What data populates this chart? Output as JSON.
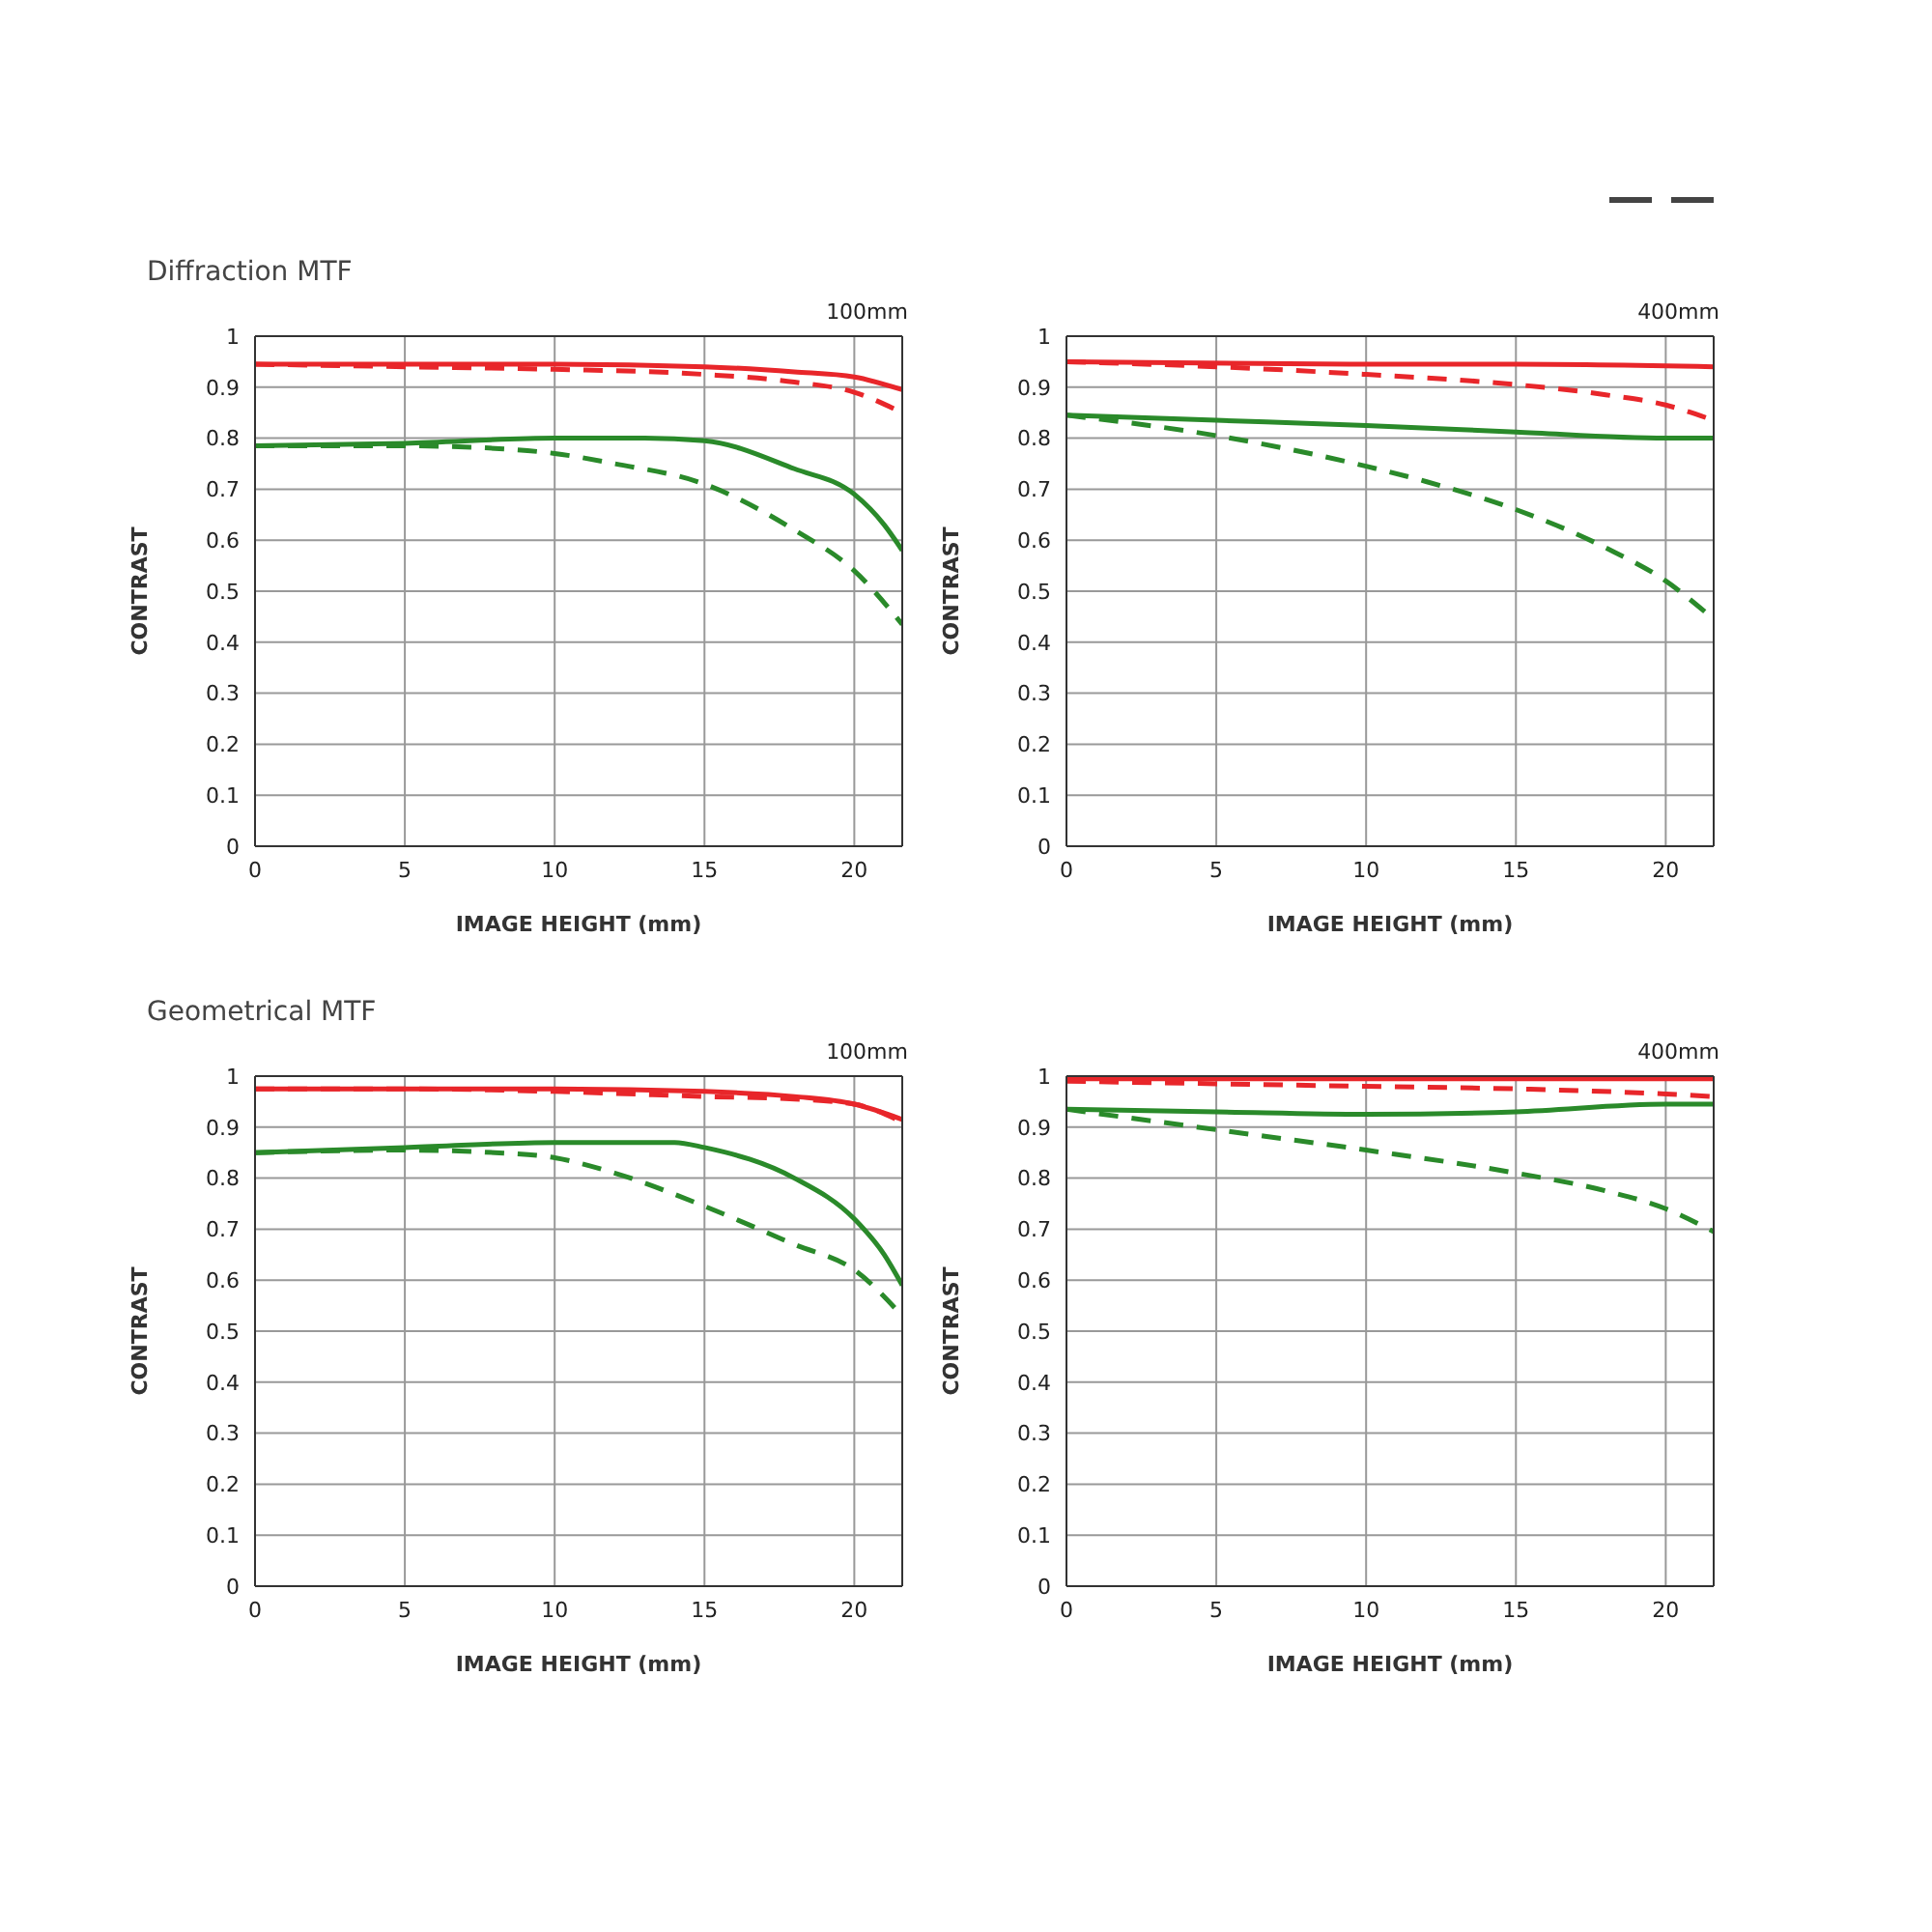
{
  "chart_data": [
    {
      "type": "line",
      "title": "Diffraction MTF",
      "subtitle": "100mm",
      "xlabel": "IMAGE HEIGHT (mm)",
      "ylabel": "CONTRAST",
      "xlim": [
        0,
        21.6
      ],
      "xticks": [
        0,
        5,
        10,
        15,
        20
      ],
      "ylim": [
        0,
        1
      ],
      "yticks": [
        0,
        0.1,
        0.2,
        0.3,
        0.4,
        0.5,
        0.6,
        0.7,
        0.8,
        0.9,
        1
      ],
      "grid": true,
      "marker": "none",
      "series": [
        {
          "color": "#e8262a",
          "line_style": "solid",
          "x": [
            0,
            5,
            10,
            15,
            18,
            20,
            21.6
          ],
          "values": [
            0.945,
            0.945,
            0.945,
            0.94,
            0.93,
            0.92,
            0.895
          ]
        },
        {
          "color": "#e8262a",
          "line_style": "dashed",
          "x": [
            0,
            5,
            10,
            15,
            18,
            20,
            21.6
          ],
          "values": [
            0.945,
            0.94,
            0.935,
            0.925,
            0.91,
            0.89,
            0.85
          ]
        },
        {
          "color": "#2a8a2a",
          "line_style": "solid",
          "x": [
            0,
            5,
            10,
            13,
            15,
            18,
            20,
            21,
            21.6
          ],
          "values": [
            0.785,
            0.79,
            0.8,
            0.8,
            0.795,
            0.74,
            0.69,
            0.63,
            0.58
          ]
        },
        {
          "color": "#2a8a2a",
          "line_style": "dashed",
          "x": [
            0,
            5,
            8,
            10,
            12,
            15,
            18,
            20,
            21.6
          ],
          "values": [
            0.785,
            0.785,
            0.78,
            0.77,
            0.75,
            0.71,
            0.62,
            0.54,
            0.435
          ]
        }
      ]
    },
    {
      "type": "line",
      "subtitle": "400mm",
      "xlabel": "IMAGE HEIGHT (mm)",
      "ylabel": "CONTRAST",
      "xlim": [
        0,
        21.6
      ],
      "xticks": [
        0,
        5,
        10,
        15,
        20
      ],
      "ylim": [
        0,
        1
      ],
      "yticks": [
        0,
        0.1,
        0.2,
        0.3,
        0.4,
        0.5,
        0.6,
        0.7,
        0.8,
        0.9,
        1
      ],
      "grid": true,
      "marker": "none",
      "series": [
        {
          "color": "#e8262a",
          "line_style": "solid",
          "x": [
            0,
            10,
            15,
            21.6
          ],
          "values": [
            0.95,
            0.945,
            0.945,
            0.94
          ]
        },
        {
          "color": "#e8262a",
          "line_style": "dashed",
          "x": [
            0,
            5,
            10,
            15,
            18,
            20,
            21.6
          ],
          "values": [
            0.95,
            0.94,
            0.925,
            0.905,
            0.885,
            0.865,
            0.835
          ]
        },
        {
          "color": "#2a8a2a",
          "line_style": "solid",
          "x": [
            0,
            5,
            10,
            15,
            20,
            21.6
          ],
          "values": [
            0.845,
            0.835,
            0.825,
            0.812,
            0.8,
            0.8
          ]
        },
        {
          "color": "#2a8a2a",
          "line_style": "dashed",
          "x": [
            0,
            5,
            10,
            12,
            15,
            18,
            20,
            21.6
          ],
          "values": [
            0.845,
            0.805,
            0.745,
            0.715,
            0.66,
            0.585,
            0.52,
            0.445
          ]
        }
      ]
    },
    {
      "type": "line",
      "title": "Geometrical MTF",
      "subtitle": "100mm",
      "xlabel": "IMAGE HEIGHT (mm)",
      "ylabel": "CONTRAST",
      "xlim": [
        0,
        21.6
      ],
      "xticks": [
        0,
        5,
        10,
        15,
        20
      ],
      "ylim": [
        0,
        1
      ],
      "yticks": [
        0,
        0.1,
        0.2,
        0.3,
        0.4,
        0.5,
        0.6,
        0.7,
        0.8,
        0.9,
        1
      ],
      "grid": true,
      "marker": "none",
      "series": [
        {
          "color": "#e8262a",
          "line_style": "solid",
          "x": [
            0,
            5,
            10,
            15,
            18,
            20,
            21.6
          ],
          "values": [
            0.975,
            0.975,
            0.975,
            0.97,
            0.96,
            0.945,
            0.915
          ]
        },
        {
          "color": "#e8262a",
          "line_style": "dashed",
          "x": [
            0,
            5,
            10,
            15,
            18,
            20,
            21.6
          ],
          "values": [
            0.975,
            0.975,
            0.97,
            0.96,
            0.955,
            0.945,
            0.91
          ]
        },
        {
          "color": "#2a8a2a",
          "line_style": "solid",
          "x": [
            0,
            5,
            10,
            14,
            15,
            18,
            20,
            21,
            21.6
          ],
          "values": [
            0.85,
            0.86,
            0.87,
            0.87,
            0.86,
            0.8,
            0.72,
            0.65,
            0.59
          ]
        },
        {
          "color": "#2a8a2a",
          "line_style": "dashed",
          "x": [
            0,
            5,
            8,
            10,
            12,
            15,
            18,
            20,
            21.6
          ],
          "values": [
            0.85,
            0.855,
            0.85,
            0.84,
            0.81,
            0.745,
            0.67,
            0.62,
            0.53
          ]
        }
      ]
    },
    {
      "type": "line",
      "subtitle": "400mm",
      "xlabel": "IMAGE HEIGHT (mm)",
      "ylabel": "CONTRAST",
      "xlim": [
        0,
        21.6
      ],
      "xticks": [
        0,
        5,
        10,
        15,
        20
      ],
      "ylim": [
        0,
        1
      ],
      "yticks": [
        0,
        0.1,
        0.2,
        0.3,
        0.4,
        0.5,
        0.6,
        0.7,
        0.8,
        0.9,
        1
      ],
      "grid": true,
      "marker": "none",
      "series": [
        {
          "color": "#e8262a",
          "line_style": "solid",
          "x": [
            0,
            21.6
          ],
          "values": [
            0.995,
            0.995
          ]
        },
        {
          "color": "#e8262a",
          "line_style": "dashed",
          "x": [
            0,
            5,
            10,
            15,
            20,
            21.6
          ],
          "values": [
            0.99,
            0.985,
            0.98,
            0.975,
            0.965,
            0.96
          ]
        },
        {
          "color": "#2a8a2a",
          "line_style": "solid",
          "x": [
            0,
            5,
            10,
            15,
            20,
            21.6
          ],
          "values": [
            0.935,
            0.93,
            0.925,
            0.93,
            0.945,
            0.945
          ]
        },
        {
          "color": "#2a8a2a",
          "line_style": "dashed",
          "x": [
            0,
            5,
            10,
            15,
            18,
            20,
            21.6
          ],
          "values": [
            0.935,
            0.895,
            0.855,
            0.81,
            0.775,
            0.74,
            0.695
          ]
        }
      ]
    }
  ]
}
